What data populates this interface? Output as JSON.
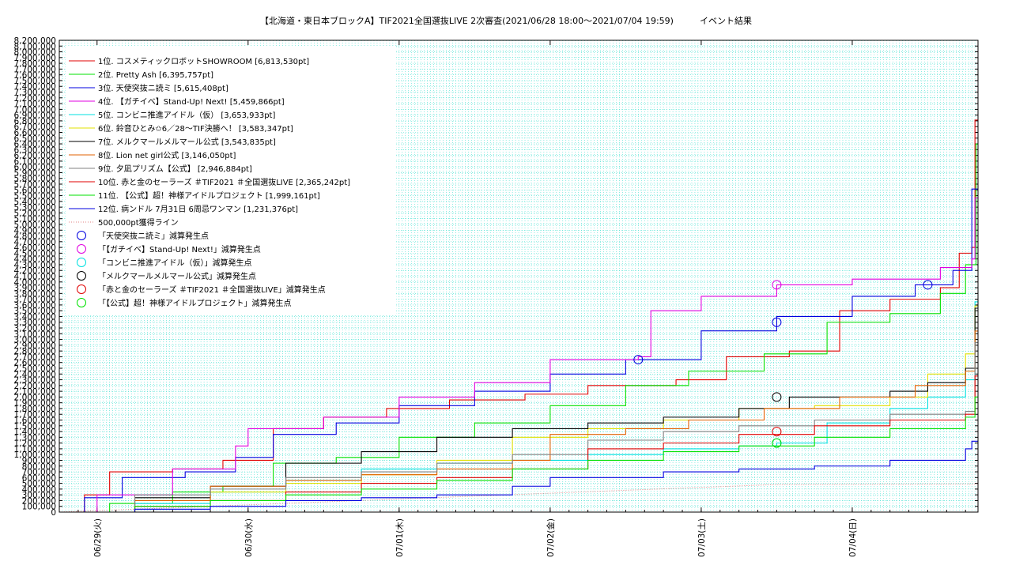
{
  "chart_data": {
    "type": "line",
    "title": "【北海道・東日本ブロックA】TIF2021全国選抜LIVE 2次審査(2021/06/28 18:00～2021/07/04 19:59)　　　イベント結果",
    "ylim": [
      0,
      8200000
    ],
    "y_tick_step": 100000,
    "y_tick_labels_show_every": 100000,
    "xlim": [
      "2021/06/28 18:00",
      "2021/07/04 19:59"
    ],
    "x_ticks": [
      {
        "x": "2021/06/29 00:00",
        "label": "06/29(火)"
      },
      {
        "x": "2021/06/30 00:00",
        "label": "06/30(水)"
      },
      {
        "x": "2021/07/01 00:00",
        "label": "07/01(木)"
      },
      {
        "x": "2021/07/02 00:00",
        "label": "07/02(金)"
      },
      {
        "x": "2021/07/03 00:00",
        "label": "07/03(土)"
      },
      {
        "x": "2021/07/04 00:00",
        "label": "07/04(日)"
      }
    ],
    "grid": true,
    "grid_color": "#40e0d0",
    "legend_position": "top-left",
    "series": [
      {
        "name": "1位. コスメティックロボットSHOWROOM [6,813,530pt]",
        "color": "#e00000",
        "points": [
          [
            "2021/06/28 18:00",
            0
          ],
          [
            "2021/06/28 22:00",
            300000
          ],
          [
            "2021/06/29 02:00",
            700000
          ],
          [
            "2021/06/29 12:00",
            750000
          ],
          [
            "2021/06/29 20:00",
            900000
          ],
          [
            "2021/06/30 04:00",
            1450000
          ],
          [
            "2021/06/30 12:00",
            1650000
          ],
          [
            "2021/06/30 22:00",
            1800000
          ],
          [
            "2021/07/01 08:00",
            1950000
          ],
          [
            "2021/07/01 20:00",
            2050000
          ],
          [
            "2021/07/02 06:00",
            2200000
          ],
          [
            "2021/07/02 20:00",
            2300000
          ],
          [
            "2021/07/03 04:00",
            2700000
          ],
          [
            "2021/07/03 14:00",
            2800000
          ],
          [
            "2021/07/03 22:00",
            3500000
          ],
          [
            "2021/07/04 06:00",
            3700000
          ],
          [
            "2021/07/04 14:00",
            3900000
          ],
          [
            "2021/07/04 17:00",
            4500000
          ],
          [
            "2021/07/04 19:00",
            4600000
          ],
          [
            "2021/07/04 19:30",
            6813530
          ],
          [
            "2021/07/04 19:59",
            6813530
          ]
        ]
      },
      {
        "name": "2位. Pretty Ash [6,395,757pt]",
        "color": "#00e000",
        "points": [
          [
            "2021/06/28 18:00",
            0
          ],
          [
            "2021/06/29 02:00",
            150000
          ],
          [
            "2021/06/29 12:00",
            350000
          ],
          [
            "2021/06/29 20:00",
            450000
          ],
          [
            "2021/06/30 04:00",
            850000
          ],
          [
            "2021/06/30 14:00",
            950000
          ],
          [
            "2021/07/01 00:00",
            1300000
          ],
          [
            "2021/07/01 12:00",
            1550000
          ],
          [
            "2021/07/02 00:00",
            1850000
          ],
          [
            "2021/07/02 12:00",
            2200000
          ],
          [
            "2021/07/02 22:00",
            2450000
          ],
          [
            "2021/07/03 10:00",
            2750000
          ],
          [
            "2021/07/03 20:00",
            3300000
          ],
          [
            "2021/07/04 06:00",
            3450000
          ],
          [
            "2021/07/04 14:00",
            3800000
          ],
          [
            "2021/07/04 18:00",
            4300000
          ],
          [
            "2021/07/04 19:40",
            6395757
          ],
          [
            "2021/07/04 19:59",
            6395757
          ]
        ]
      },
      {
        "name": "3位. 天使突抜ニ読ミ [5,615,408pt]",
        "color": "#0000e0",
        "points": [
          [
            "2021/06/28 18:00",
            0
          ],
          [
            "2021/06/28 22:00",
            250000
          ],
          [
            "2021/06/29 04:00",
            600000
          ],
          [
            "2021/06/29 14:00",
            700000
          ],
          [
            "2021/06/29 22:00",
            950000
          ],
          [
            "2021/06/30 04:00",
            1350000
          ],
          [
            "2021/06/30 14:00",
            1550000
          ],
          [
            "2021/07/01 00:00",
            1850000
          ],
          [
            "2021/07/01 12:00",
            2100000
          ],
          [
            "2021/07/02 00:00",
            2400000
          ],
          [
            "2021/07/02 12:00",
            2650000
          ],
          [
            "2021/07/03 00:00",
            3150000
          ],
          [
            "2021/07/03 12:00",
            3400000
          ],
          [
            "2021/07/04 00:00",
            3750000
          ],
          [
            "2021/07/04 10:00",
            3950000
          ],
          [
            "2021/07/04 16:00",
            4200000
          ],
          [
            "2021/07/04 19:00",
            5615408
          ],
          [
            "2021/07/04 19:59",
            5615408
          ]
        ]
      },
      {
        "name": "4位. 【ガチイベ】Stand-Up! Next! [5,459,866pt]",
        "color": "#e000e0",
        "points": [
          [
            "2021/06/28 18:00",
            0
          ],
          [
            "2021/06/29 00:00",
            300000
          ],
          [
            "2021/06/29 12:00",
            750000
          ],
          [
            "2021/06/29 22:00",
            1150000
          ],
          [
            "2021/06/30 00:00",
            1450000
          ],
          [
            "2021/06/30 12:00",
            1650000
          ],
          [
            "2021/07/01 00:00",
            2000000
          ],
          [
            "2021/07/01 12:00",
            2250000
          ],
          [
            "2021/07/02 00:00",
            2650000
          ],
          [
            "2021/07/02 14:00",
            2700000
          ],
          [
            "2021/07/02 16:00",
            3500000
          ],
          [
            "2021/07/03 00:00",
            3750000
          ],
          [
            "2021/07/03 12:00",
            3950000
          ],
          [
            "2021/07/04 00:00",
            4050000
          ],
          [
            "2021/07/04 14:00",
            4250000
          ],
          [
            "2021/07/04 19:00",
            4400000
          ],
          [
            "2021/07/04 19:30",
            5459866
          ],
          [
            "2021/07/04 19:59",
            5459866
          ]
        ]
      },
      {
        "name": "5位. コンビニ推進アイドル（仮） [3,653,933pt]",
        "color": "#00e0e0",
        "points": [
          [
            "2021/06/28 18:00",
            0
          ],
          [
            "2021/06/29 06:00",
            150000
          ],
          [
            "2021/06/29 18:00",
            350000
          ],
          [
            "2021/06/30 06:00",
            550000
          ],
          [
            "2021/06/30 18:00",
            750000
          ],
          [
            "2021/07/01 06:00",
            850000
          ],
          [
            "2021/07/01 18:00",
            900000
          ],
          [
            "2021/07/02 06:00",
            1000000
          ],
          [
            "2021/07/02 18:00",
            1100000
          ],
          [
            "2021/07/03 06:00",
            1150000
          ],
          [
            "2021/07/03 12:00",
            1200000
          ],
          [
            "2021/07/03 20:00",
            1550000
          ],
          [
            "2021/07/04 06:00",
            1800000
          ],
          [
            "2021/07/04 12:00",
            2000000
          ],
          [
            "2021/07/04 18:00",
            2300000
          ],
          [
            "2021/07/04 19:30",
            3653933
          ],
          [
            "2021/07/04 19:59",
            3653933
          ]
        ]
      },
      {
        "name": "6位. 鈴音ひとみ✩6／28〜TIF決勝へ！ [3,583,347pt]",
        "color": "#e0e000",
        "points": [
          [
            "2021/06/28 18:00",
            0
          ],
          [
            "2021/06/29 06:00",
            200000
          ],
          [
            "2021/06/29 18:00",
            350000
          ],
          [
            "2021/06/30 06:00",
            500000
          ],
          [
            "2021/06/30 18:00",
            650000
          ],
          [
            "2021/07/01 06:00",
            900000
          ],
          [
            "2021/07/01 18:00",
            1300000
          ],
          [
            "2021/07/02 06:00",
            1450000
          ],
          [
            "2021/07/02 18:00",
            1600000
          ],
          [
            "2021/07/03 06:00",
            1800000
          ],
          [
            "2021/07/03 18:00",
            1850000
          ],
          [
            "2021/07/04 06:00",
            2000000
          ],
          [
            "2021/07/04 12:00",
            2400000
          ],
          [
            "2021/07/04 18:00",
            2750000
          ],
          [
            "2021/07/04 19:30",
            3583347
          ],
          [
            "2021/07/04 19:59",
            3583347
          ]
        ]
      },
      {
        "name": "7位. メルクマールメルマール公式 [3,543,835pt]",
        "color": "#000000",
        "points": [
          [
            "2021/06/28 18:00",
            0
          ],
          [
            "2021/06/29 06:00",
            250000
          ],
          [
            "2021/06/29 18:00",
            450000
          ],
          [
            "2021/06/30 06:00",
            850000
          ],
          [
            "2021/06/30 18:00",
            1050000
          ],
          [
            "2021/07/01 06:00",
            1300000
          ],
          [
            "2021/07/01 18:00",
            1450000
          ],
          [
            "2021/07/02 06:00",
            1550000
          ],
          [
            "2021/07/02 18:00",
            1650000
          ],
          [
            "2021/07/03 06:00",
            1800000
          ],
          [
            "2021/07/03 14:00",
            2000000
          ],
          [
            "2021/07/04 06:00",
            2100000
          ],
          [
            "2021/07/04 12:00",
            2250000
          ],
          [
            "2021/07/04 18:00",
            2500000
          ],
          [
            "2021/07/04 19:30",
            3543835
          ],
          [
            "2021/07/04 19:59",
            3543835
          ]
        ]
      },
      {
        "name": "8位. Lion net girl公式 [3,146,050pt]",
        "color": "#e06000",
        "points": [
          [
            "2021/06/28 18:00",
            0
          ],
          [
            "2021/06/29 06:00",
            200000
          ],
          [
            "2021/06/29 18:00",
            450000
          ],
          [
            "2021/06/30 06:00",
            550000
          ],
          [
            "2021/06/30 18:00",
            650000
          ],
          [
            "2021/07/01 06:00",
            750000
          ],
          [
            "2021/07/01 18:00",
            900000
          ],
          [
            "2021/07/02 00:00",
            1350000
          ],
          [
            "2021/07/02 12:00",
            1450000
          ],
          [
            "2021/07/02 22:00",
            1600000
          ],
          [
            "2021/07/03 10:00",
            1800000
          ],
          [
            "2021/07/03 22:00",
            2000000
          ],
          [
            "2021/07/04 10:00",
            2200000
          ],
          [
            "2021/07/04 18:00",
            2450000
          ],
          [
            "2021/07/04 19:30",
            3146050
          ],
          [
            "2021/07/04 19:59",
            3146050
          ]
        ]
      },
      {
        "name": "9位. 夕凪プリズム【公式】 [2,946,884pt]",
        "color": "#808080",
        "points": [
          [
            "2021/06/28 18:00",
            0
          ],
          [
            "2021/06/29 06:00",
            300000
          ],
          [
            "2021/06/29 18:00",
            400000
          ],
          [
            "2021/06/30 06:00",
            600000
          ],
          [
            "2021/06/30 18:00",
            700000
          ],
          [
            "2021/07/01 06:00",
            850000
          ],
          [
            "2021/07/01 18:00",
            1000000
          ],
          [
            "2021/07/02 06:00",
            1250000
          ],
          [
            "2021/07/02 18:00",
            1400000
          ],
          [
            "2021/07/03 06:00",
            1500000
          ],
          [
            "2021/07/03 18:00",
            1600000
          ],
          [
            "2021/07/04 06:00",
            1700000
          ],
          [
            "2021/07/04 18:00",
            1750000
          ],
          [
            "2021/07/04 19:30",
            2946884
          ],
          [
            "2021/07/04 19:59",
            2946884
          ]
        ]
      },
      {
        "name": "10位. 赤と金のセーラーズ ＃TIF2021 ＃全国選抜LIVE [2,365,242pt]",
        "color": "#e00000",
        "points": [
          [
            "2021/06/28 18:00",
            0
          ],
          [
            "2021/06/29 06:00",
            100000
          ],
          [
            "2021/06/29 18:00",
            200000
          ],
          [
            "2021/06/30 06:00",
            350000
          ],
          [
            "2021/06/30 18:00",
            500000
          ],
          [
            "2021/07/01 06:00",
            600000
          ],
          [
            "2021/07/01 18:00",
            750000
          ],
          [
            "2021/07/02 06:00",
            1100000
          ],
          [
            "2021/07/02 18:00",
            1200000
          ],
          [
            "2021/07/03 06:00",
            1350000
          ],
          [
            "2021/07/03 18:00",
            1500000
          ],
          [
            "2021/07/04 06:00",
            1600000
          ],
          [
            "2021/07/04 18:00",
            1700000
          ],
          [
            "2021/07/04 19:30",
            2365242
          ],
          [
            "2021/07/04 19:59",
            2365242
          ]
        ]
      },
      {
        "name": "11位. 【公式】超！神様アイドルプロジェクト [1,999,161pt]",
        "color": "#00e000",
        "points": [
          [
            "2021/06/28 18:00",
            0
          ],
          [
            "2021/06/29 06:00",
            100000
          ],
          [
            "2021/06/29 18:00",
            200000
          ],
          [
            "2021/06/30 06:00",
            300000
          ],
          [
            "2021/06/30 18:00",
            400000
          ],
          [
            "2021/07/01 06:00",
            550000
          ],
          [
            "2021/07/01 18:00",
            750000
          ],
          [
            "2021/07/02 06:00",
            900000
          ],
          [
            "2021/07/02 18:00",
            1050000
          ],
          [
            "2021/07/03 06:00",
            1150000
          ],
          [
            "2021/07/03 18:00",
            1300000
          ],
          [
            "2021/07/04 06:00",
            1450000
          ],
          [
            "2021/07/04 18:00",
            1650000
          ],
          [
            "2021/07/04 19:30",
            1999161
          ],
          [
            "2021/07/04 19:59",
            1999161
          ]
        ]
      },
      {
        "name": "12位. 病ンドル 7月31日 6周忌ワンマン [1,231,376pt]",
        "color": "#0000e0",
        "points": [
          [
            "2021/06/28 18:00",
            0
          ],
          [
            "2021/06/29 06:00",
            50000
          ],
          [
            "2021/06/29 18:00",
            100000
          ],
          [
            "2021/06/30 06:00",
            200000
          ],
          [
            "2021/06/30 18:00",
            250000
          ],
          [
            "2021/07/01 06:00",
            300000
          ],
          [
            "2021/07/01 18:00",
            450000
          ],
          [
            "2021/07/02 00:00",
            600000
          ],
          [
            "2021/07/02 18:00",
            700000
          ],
          [
            "2021/07/03 06:00",
            750000
          ],
          [
            "2021/07/03 18:00",
            800000
          ],
          [
            "2021/07/04 06:00",
            900000
          ],
          [
            "2021/07/04 18:00",
            1100000
          ],
          [
            "2021/07/04 19:00",
            1231376
          ],
          [
            "2021/07/04 19:59",
            1231376
          ]
        ]
      }
    ],
    "reference_line": {
      "name": "500,000pt獲得ライン",
      "color": "#e08080",
      "points": [
        [
          "2021/06/28 18:00",
          0
        ],
        [
          "2021/07/03 12:00",
          480000
        ],
        [
          "2021/07/04 19:59",
          490000
        ]
      ]
    },
    "markers": [
      {
        "name": "「天使突抜ニ読ミ」減算発生点",
        "color": "#0000e0",
        "points": [
          [
            "2021/07/02 14:00",
            2650000
          ],
          [
            "2021/07/03 12:00",
            3300000
          ],
          [
            "2021/07/04 12:00",
            3950000
          ]
        ]
      },
      {
        "name": "「【ガチイベ】Stand-Up! Next!」減算発生点",
        "color": "#e000e0",
        "points": [
          [
            "2021/07/03 12:00",
            3950000
          ]
        ]
      },
      {
        "name": "「コンビニ推進アイドル（仮）」減算発生点",
        "color": "#00e0e0",
        "points": [
          [
            "2021/07/03 12:00",
            1200000
          ]
        ]
      },
      {
        "name": "「メルクマールメルマール公式」減算発生点",
        "color": "#000000",
        "points": [
          [
            "2021/07/03 12:00",
            2000000
          ]
        ]
      },
      {
        "name": "「赤と金のセーラーズ ＃TIF2021 ＃全国選抜LIVE」減算発生点",
        "color": "#e00000",
        "points": [
          [
            "2021/07/03 12:00",
            1400000
          ]
        ]
      },
      {
        "name": "「【公式】超！神様アイドルプロジェクト」減算発生点",
        "color": "#00e000",
        "points": [
          [
            "2021/07/03 12:00",
            1200000
          ]
        ]
      }
    ]
  }
}
